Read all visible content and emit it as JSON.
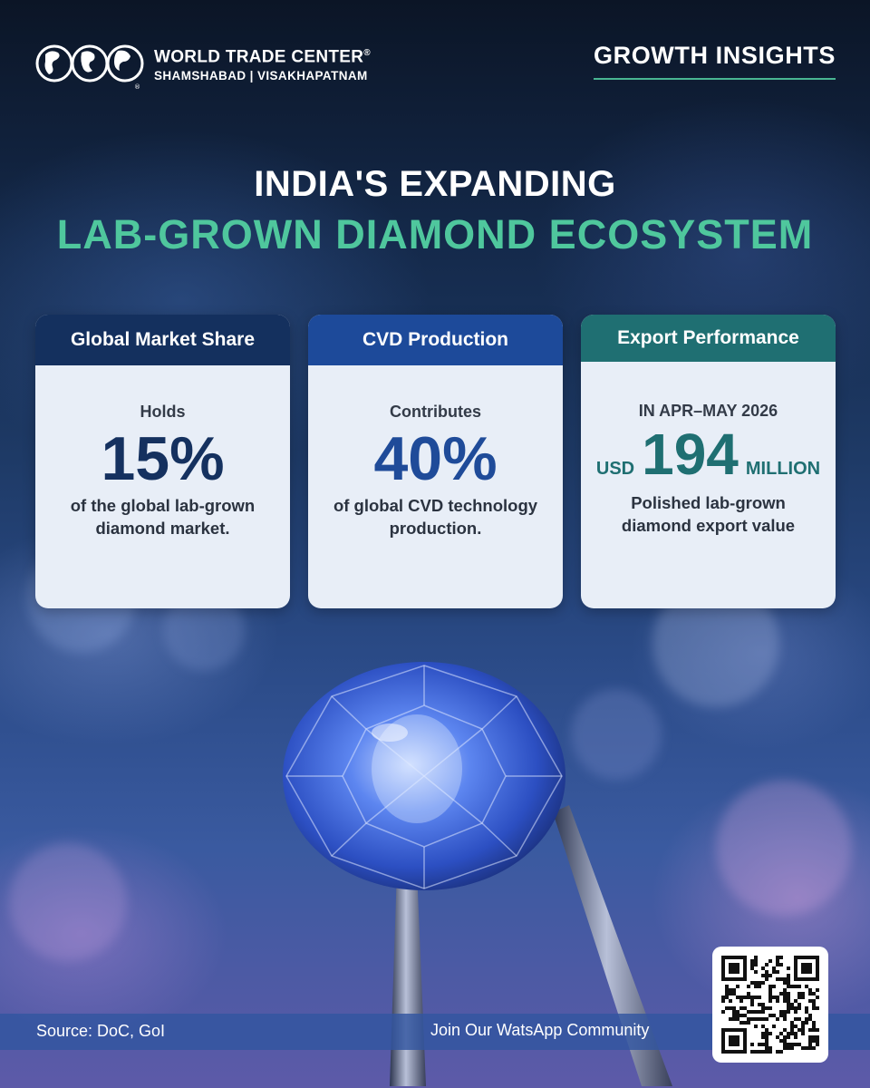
{
  "brand": {
    "name": "WORLD TRADE CENTER",
    "registered": "®",
    "locations": "SHAMSHABAD | VISAKHAPATNAM",
    "logo_icon": "wtc-globe-logo-icon"
  },
  "tag": "GROWTH INSIGHTS",
  "title": {
    "line1": "INDIA'S EXPANDING",
    "line2": "LAB-GROWN DIAMOND ECOSYSTEM"
  },
  "colors": {
    "accent_green": "#4fc79d",
    "card1_header": "#14305e",
    "card2_header": "#1d4a9a",
    "card3_header": "#1f6f72"
  },
  "cards": [
    {
      "header": "Global Market Share",
      "intro": "Holds",
      "value": "15%",
      "description_line1": "of the global lab-grown",
      "description_line2": "diamond market."
    },
    {
      "header": "CVD Production",
      "intro": "Contributes",
      "value": "40%",
      "description_line1": "of global CVD technology",
      "description_line2": "production."
    },
    {
      "header": "Export Performance",
      "intro": "IN APR–MAY 2026",
      "prefix": "USD",
      "value": "194",
      "suffix": "MILLION",
      "description_line1": "Polished lab-grown",
      "description_line2": "diamond export value"
    }
  ],
  "footer": {
    "source": "Source: DoC, GoI",
    "cta": "Join Our WatsApp Community",
    "qr_icon": "qr-code-icon"
  }
}
